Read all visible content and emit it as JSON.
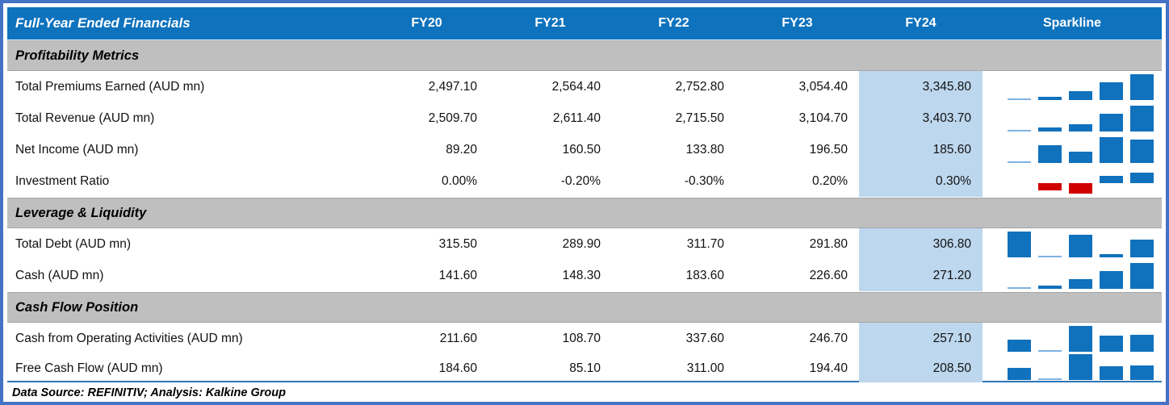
{
  "header": {
    "title": "Full-Year Ended Financials",
    "year_columns": [
      "FY20",
      "FY21",
      "FY22",
      "FY23",
      "FY24"
    ],
    "sparkline_label": "Sparkline"
  },
  "footer": {
    "source_note": "Data Source: REFINITIV; Analysis: Kalkine Group"
  },
  "colors": {
    "frame_blue": "#4472C4",
    "header_blue": "#0E72BD",
    "section_gray": "#BFBFBF",
    "highlight_blue": "#BDD7EE",
    "spark_blue": "#1071BD",
    "spark_light_blue": "#7EB3E2",
    "spark_red": "#D00000",
    "separator_blue": "#2E75B6"
  },
  "chart_data": {
    "type": "table",
    "columns": [
      "FY20",
      "FY21",
      "FY22",
      "FY23",
      "FY24"
    ],
    "sparkline_type": "column",
    "sections": [
      {
        "title": "Profitability Metrics",
        "rows": [
          {
            "label": "Total Premiums Earned (AUD mn)",
            "display": [
              "2,497.10",
              "2,564.40",
              "2,752.80",
              "3,054.40",
              "3,345.80"
            ],
            "values": [
              2497.1,
              2564.4,
              2752.8,
              3054.4,
              3345.8
            ]
          },
          {
            "label": "Total Revenue (AUD mn)",
            "display": [
              "2,509.70",
              "2,611.40",
              "2,715.50",
              "3,104.70",
              "3,403.70"
            ],
            "values": [
              2509.7,
              2611.4,
              2715.5,
              3104.7,
              3403.7
            ]
          },
          {
            "label": "Net Income (AUD mn)",
            "display": [
              "89.20",
              "160.50",
              "133.80",
              "196.50",
              "185.60"
            ],
            "values": [
              89.2,
              160.5,
              133.8,
              196.5,
              185.6
            ]
          },
          {
            "label": "Investment Ratio",
            "display": [
              "0.00%",
              "-0.20%",
              "-0.30%",
              "0.20%",
              "0.30%"
            ],
            "values": [
              0,
              -0.2,
              -0.3,
              0.2,
              0.3
            ]
          }
        ]
      },
      {
        "title": "Leverage & Liquidity",
        "rows": [
          {
            "label": "Total Debt (AUD mn)",
            "display": [
              "315.50",
              "289.90",
              "311.70",
              "291.80",
              "306.80"
            ],
            "values": [
              315.5,
              289.9,
              311.7,
              291.8,
              306.8
            ]
          },
          {
            "label": "Cash (AUD mn)",
            "display": [
              "141.60",
              "148.30",
              "183.60",
              "226.60",
              "271.20"
            ],
            "values": [
              141.6,
              148.3,
              183.6,
              226.6,
              271.2
            ]
          }
        ]
      },
      {
        "title": "Cash Flow Position",
        "rows": [
          {
            "label": "Cash from Operating Activities (AUD mn)",
            "display": [
              "211.60",
              "108.70",
              "337.60",
              "246.70",
              "257.10"
            ],
            "values": [
              211.6,
              108.7,
              337.6,
              246.7,
              257.1
            ]
          },
          {
            "label": "Free Cash Flow (AUD mn)",
            "display": [
              "184.60",
              "85.10",
              "311.00",
              "194.40",
              "208.50"
            ],
            "values": [
              184.6,
              85.1,
              311.0,
              194.4,
              208.5
            ]
          }
        ]
      }
    ]
  }
}
